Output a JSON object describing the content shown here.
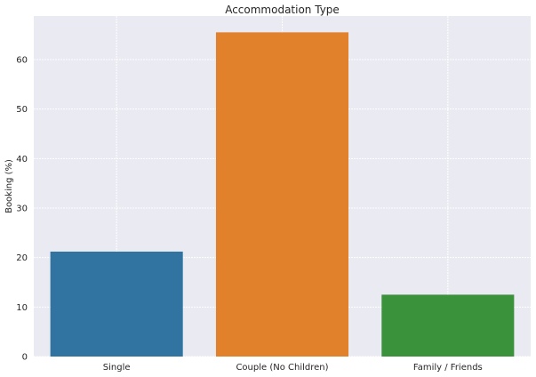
{
  "chart_data": {
    "type": "bar",
    "title": "Accommodation Type",
    "xlabel": "",
    "ylabel": "Booking (%)",
    "categories": [
      "Single",
      "Couple (No Children)",
      "Family / Friends"
    ],
    "values": [
      21.2,
      65.5,
      12.5
    ],
    "colors": [
      "#3274a1",
      "#e1812c",
      "#3a923a"
    ],
    "ylim": [
      0,
      68.8
    ],
    "yticks": [
      0,
      10,
      20,
      30,
      40,
      50,
      60
    ],
    "ytick_labels": [
      "0",
      "10",
      "20",
      "30",
      "40",
      "50",
      "60"
    ],
    "grid": true,
    "background_color": "#eaeaf2",
    "grid_color": "#ffffff"
  }
}
